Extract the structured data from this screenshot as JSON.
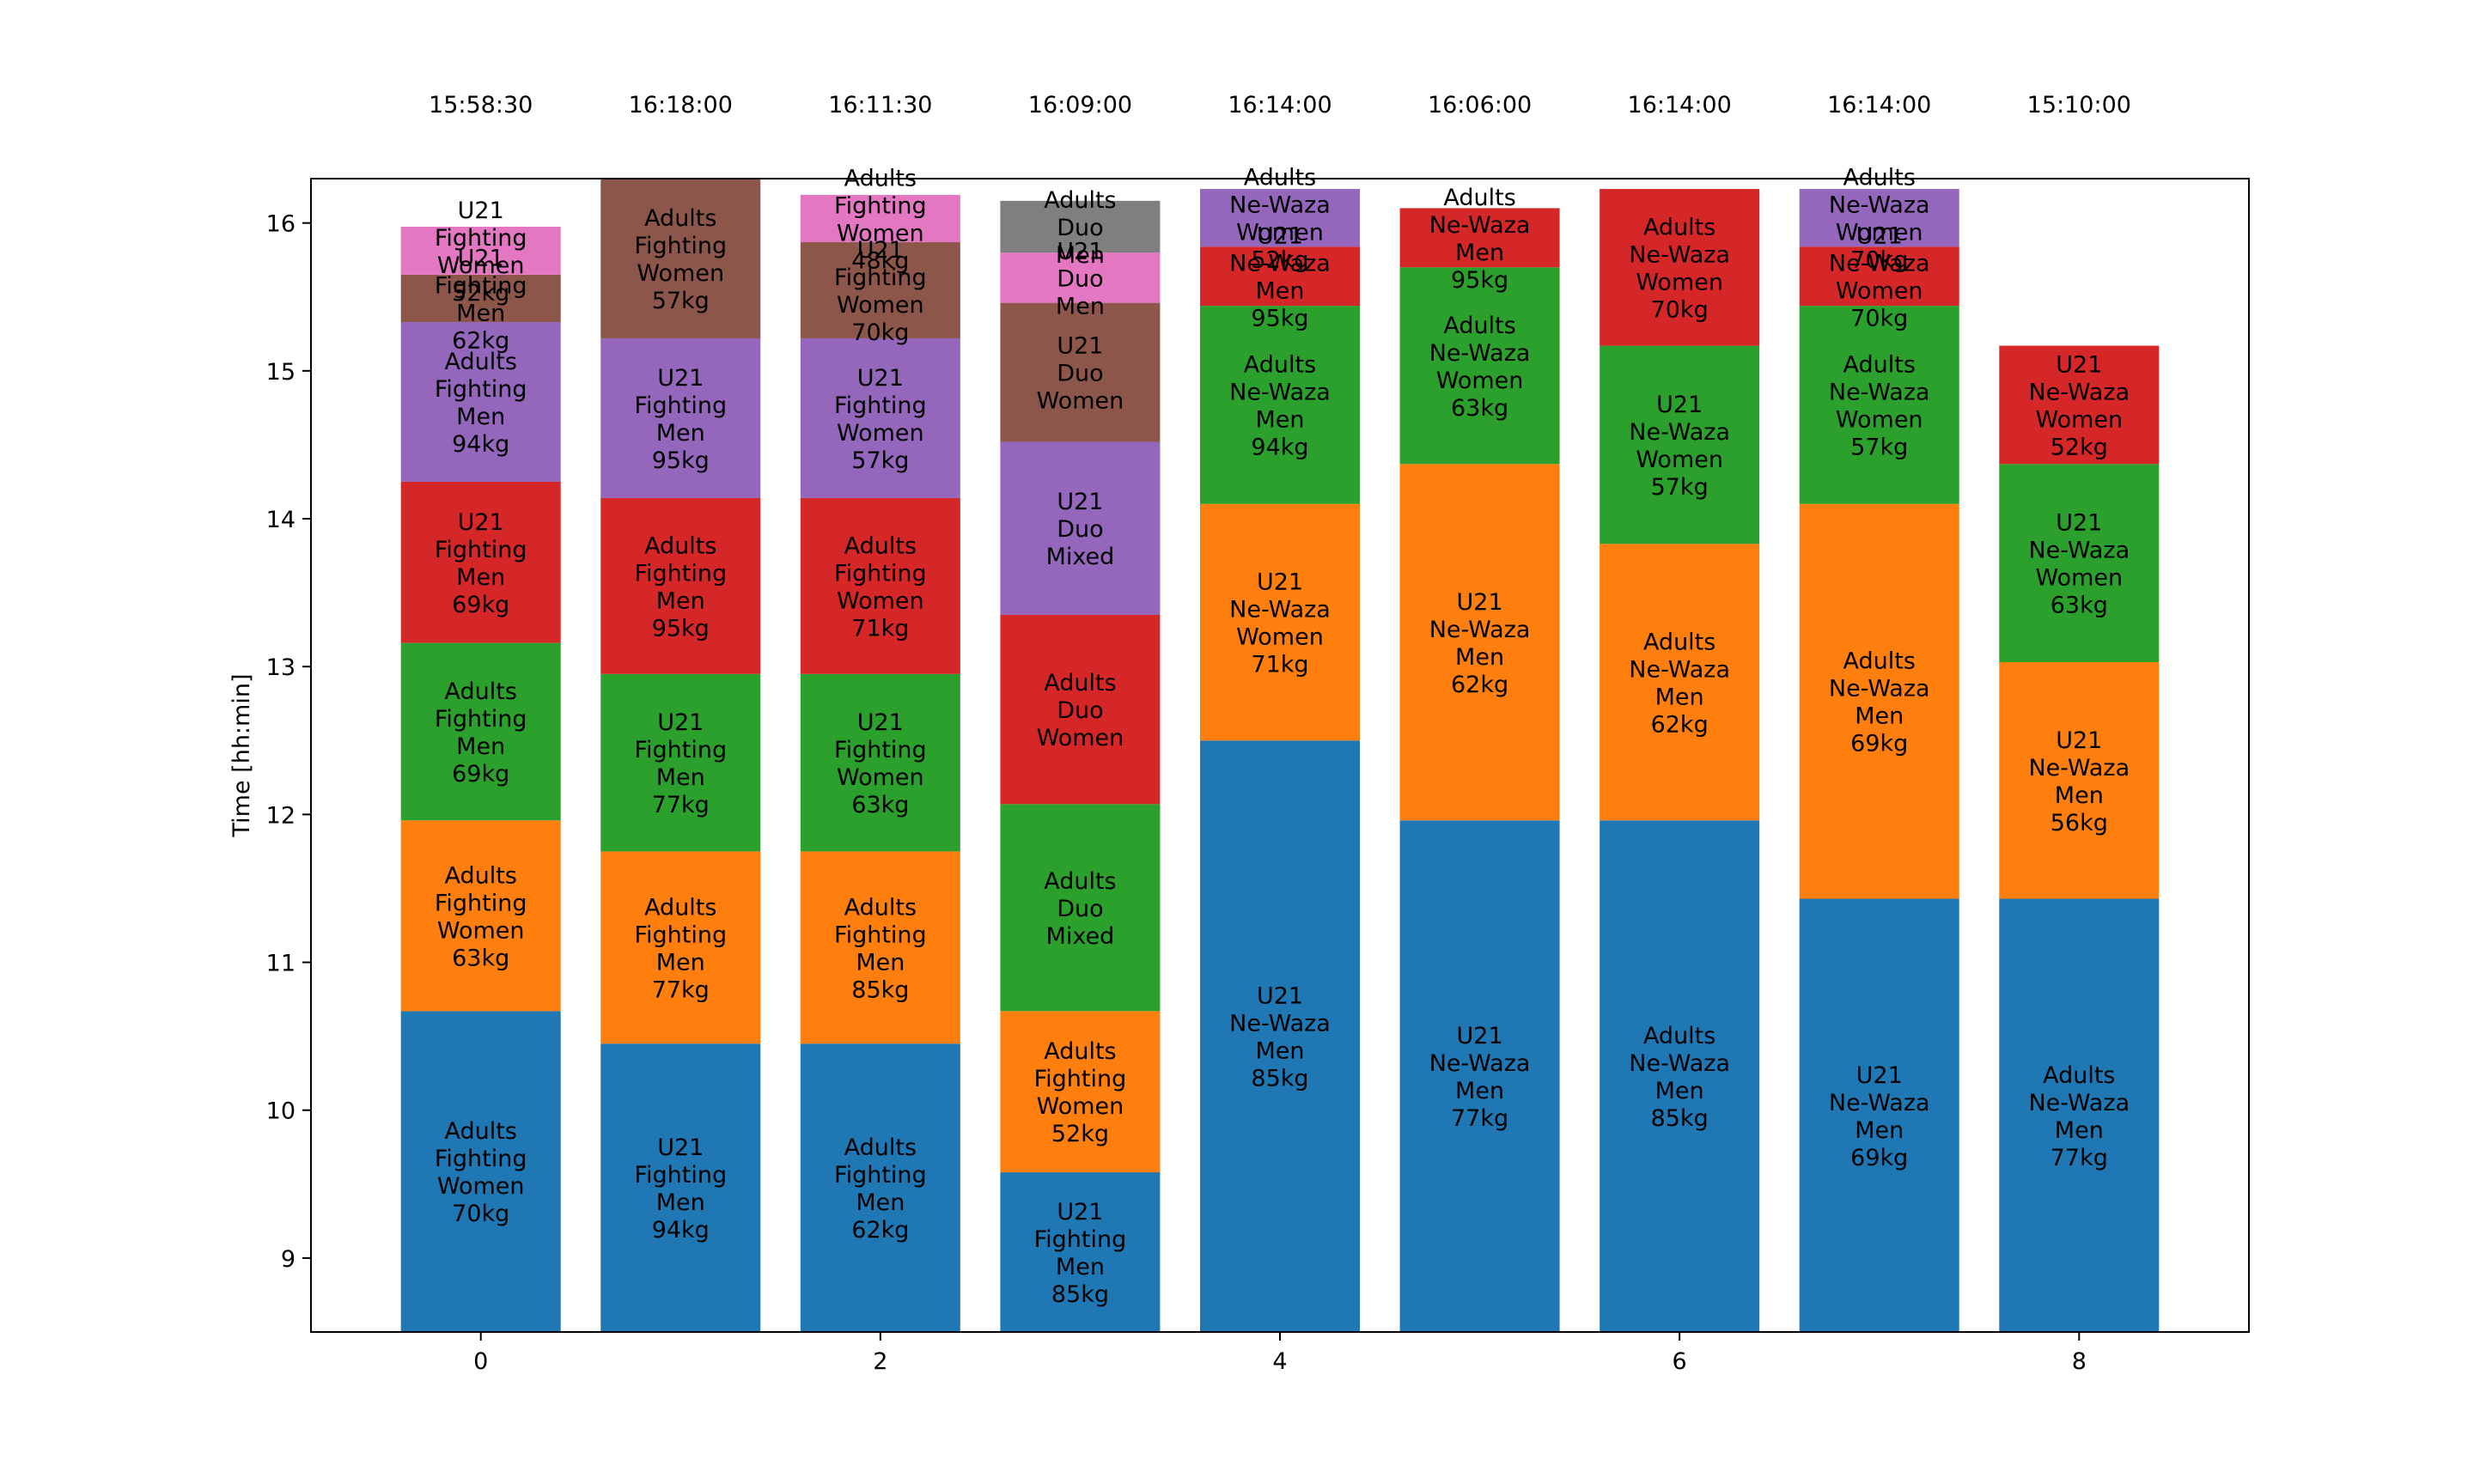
{
  "chart_data": {
    "type": "bar",
    "stacked": true,
    "ylabel": "Time [hh:min]",
    "xlabel": "",
    "title": "",
    "ylim": [
      8.5,
      16.3
    ],
    "xlim": [
      -0.85,
      8.85
    ],
    "yticks": [
      "9",
      "10",
      "11",
      "12",
      "13",
      "14",
      "15",
      "16"
    ],
    "xticks": [
      "0",
      "2",
      "4",
      "6",
      "8"
    ],
    "base": 8.5,
    "palette": [
      "#1f77b4",
      "#ff7f0e",
      "#2ca02c",
      "#d62728",
      "#9467bd",
      "#8c564b",
      "#e377c2",
      "#7f7f7f"
    ],
    "bars": [
      {
        "x": 0,
        "end_label": "15:58:30",
        "segments": [
          {
            "top": 10.67,
            "label": [
              "Adults",
              "Fighting",
              "Women",
              "70kg"
            ]
          },
          {
            "top": 11.96,
            "label": [
              "Adults",
              "Fighting",
              "Women",
              "63kg"
            ]
          },
          {
            "top": 13.16,
            "label": [
              "Adults",
              "Fighting",
              "Men",
              "69kg"
            ]
          },
          {
            "top": 14.25,
            "label": [
              "U21",
              "Fighting",
              "Men",
              "69kg"
            ]
          },
          {
            "top": 15.33,
            "label": [
              "Adults",
              "Fighting",
              "Men",
              "94kg"
            ]
          },
          {
            "top": 15.65,
            "label": [
              "U21",
              "Fighting",
              "Men",
              "62kg"
            ]
          },
          {
            "top": 15.975,
            "label": [
              "U21",
              "Fighting",
              "Women",
              "52kg"
            ]
          }
        ]
      },
      {
        "x": 1,
        "end_label": "16:18:00",
        "segments": [
          {
            "top": 10.45,
            "label": [
              "U21",
              "Fighting",
              "Men",
              "94kg"
            ]
          },
          {
            "top": 11.75,
            "label": [
              "Adults",
              "Fighting",
              "Men",
              "77kg"
            ]
          },
          {
            "top": 12.95,
            "label": [
              "U21",
              "Fighting",
              "Men",
              "77kg"
            ]
          },
          {
            "top": 14.14,
            "label": [
              "Adults",
              "Fighting",
              "Men",
              "95kg"
            ]
          },
          {
            "top": 15.22,
            "label": [
              "U21",
              "Fighting",
              "Men",
              "95kg"
            ]
          },
          {
            "top": 16.3,
            "label": [
              "Adults",
              "Fighting",
              "Women",
              "57kg"
            ]
          }
        ]
      },
      {
        "x": 2,
        "end_label": "16:11:30",
        "segments": [
          {
            "top": 10.45,
            "label": [
              "Adults",
              "Fighting",
              "Men",
              "62kg"
            ]
          },
          {
            "top": 11.75,
            "label": [
              "Adults",
              "Fighting",
              "Men",
              "85kg"
            ]
          },
          {
            "top": 12.95,
            "label": [
              "U21",
              "Fighting",
              "Women",
              "63kg"
            ]
          },
          {
            "top": 14.14,
            "label": [
              "Adults",
              "Fighting",
              "Women",
              "71kg"
            ]
          },
          {
            "top": 15.22,
            "label": [
              "U21",
              "Fighting",
              "Women",
              "57kg"
            ]
          },
          {
            "top": 15.87,
            "label": [
              "U21",
              "Fighting",
              "Women",
              "70kg"
            ]
          },
          {
            "top": 16.19,
            "label": [
              "Adults",
              "Fighting",
              "Women",
              "48kg"
            ]
          }
        ]
      },
      {
        "x": 3,
        "end_label": "16:09:00",
        "segments": [
          {
            "top": 9.58,
            "label": [
              "U21",
              "Fighting",
              "Men",
              "85kg"
            ]
          },
          {
            "top": 10.67,
            "label": [
              "Adults",
              "Fighting",
              "Women",
              "52kg"
            ]
          },
          {
            "top": 12.07,
            "label": [
              "Adults",
              "Duo",
              "Mixed"
            ]
          },
          {
            "top": 13.35,
            "label": [
              "Adults",
              "Duo",
              "Women"
            ]
          },
          {
            "top": 14.52,
            "label": [
              "U21",
              "Duo",
              "Mixed"
            ]
          },
          {
            "top": 15.46,
            "label": [
              "U21",
              "Duo",
              "Women"
            ]
          },
          {
            "top": 15.8,
            "label": [
              "U21",
              "Duo",
              "Men"
            ]
          },
          {
            "top": 16.15,
            "label": [
              "Adults",
              "Duo",
              "Men"
            ]
          }
        ]
      },
      {
        "x": 4,
        "end_label": "16:14:00",
        "segments": [
          {
            "top": 12.5,
            "label": [
              "U21",
              "Ne-Waza",
              "Men",
              "85kg"
            ]
          },
          {
            "top": 14.1,
            "label": [
              "U21",
              "Ne-Waza",
              "Women",
              "71kg"
            ]
          },
          {
            "top": 15.44,
            "label": [
              "Adults",
              "Ne-Waza",
              "Men",
              "94kg"
            ]
          },
          {
            "top": 15.84,
            "label": [
              "U21",
              "Ne-Waza",
              "Men",
              "95kg"
            ]
          },
          {
            "top": 16.23,
            "label": [
              "Adults",
              "Ne-Waza",
              "Women",
              "52kg"
            ]
          }
        ]
      },
      {
        "x": 5,
        "end_label": "16:06:00",
        "segments": [
          {
            "top": 11.96,
            "label": [
              "U21",
              "Ne-Waza",
              "Men",
              "77kg"
            ]
          },
          {
            "top": 14.37,
            "label": [
              "U21",
              "Ne-Waza",
              "Men",
              "62kg"
            ]
          },
          {
            "top": 15.7,
            "label": [
              "Adults",
              "Ne-Waza",
              "Women",
              "63kg"
            ]
          },
          {
            "top": 16.1,
            "label": [
              "Adults",
              "Ne-Waza",
              "Men",
              "95kg"
            ]
          }
        ]
      },
      {
        "x": 6,
        "end_label": "16:14:00",
        "segments": [
          {
            "top": 11.96,
            "label": [
              "Adults",
              "Ne-Waza",
              "Men",
              "85kg"
            ]
          },
          {
            "top": 13.83,
            "label": [
              "Adults",
              "Ne-Waza",
              "Men",
              "62kg"
            ]
          },
          {
            "top": 15.17,
            "label": [
              "U21",
              "Ne-Waza",
              "Women",
              "57kg"
            ]
          },
          {
            "top": 16.23,
            "label": [
              "Adults",
              "Ne-Waza",
              "Women",
              "70kg"
            ]
          }
        ]
      },
      {
        "x": 7,
        "end_label": "16:14:00",
        "segments": [
          {
            "top": 11.43,
            "label": [
              "U21",
              "Ne-Waza",
              "Men",
              "69kg"
            ]
          },
          {
            "top": 14.1,
            "label": [
              "Adults",
              "Ne-Waza",
              "Men",
              "69kg"
            ]
          },
          {
            "top": 15.44,
            "label": [
              "Adults",
              "Ne-Waza",
              "Women",
              "57kg"
            ]
          },
          {
            "top": 15.84,
            "label": [
              "U21",
              "Ne-Waza",
              "Women",
              "70kg"
            ]
          },
          {
            "top": 16.23,
            "label": [
              "Adults",
              "Ne-Waza",
              "Women",
              "70kg"
            ]
          }
        ]
      },
      {
        "x": 8,
        "end_label": "15:10:00",
        "segments": [
          {
            "top": 11.43,
            "label": [
              "Adults",
              "Ne-Waza",
              "Men",
              "77kg"
            ]
          },
          {
            "top": 13.03,
            "label": [
              "U21",
              "Ne-Waza",
              "Men",
              "56kg"
            ]
          },
          {
            "top": 14.37,
            "label": [
              "U21",
              "Ne-Waza",
              "Women",
              "63kg"
            ]
          },
          {
            "top": 15.17,
            "label": [
              "U21",
              "Ne-Waza",
              "Women",
              "52kg"
            ]
          }
        ]
      }
    ]
  }
}
